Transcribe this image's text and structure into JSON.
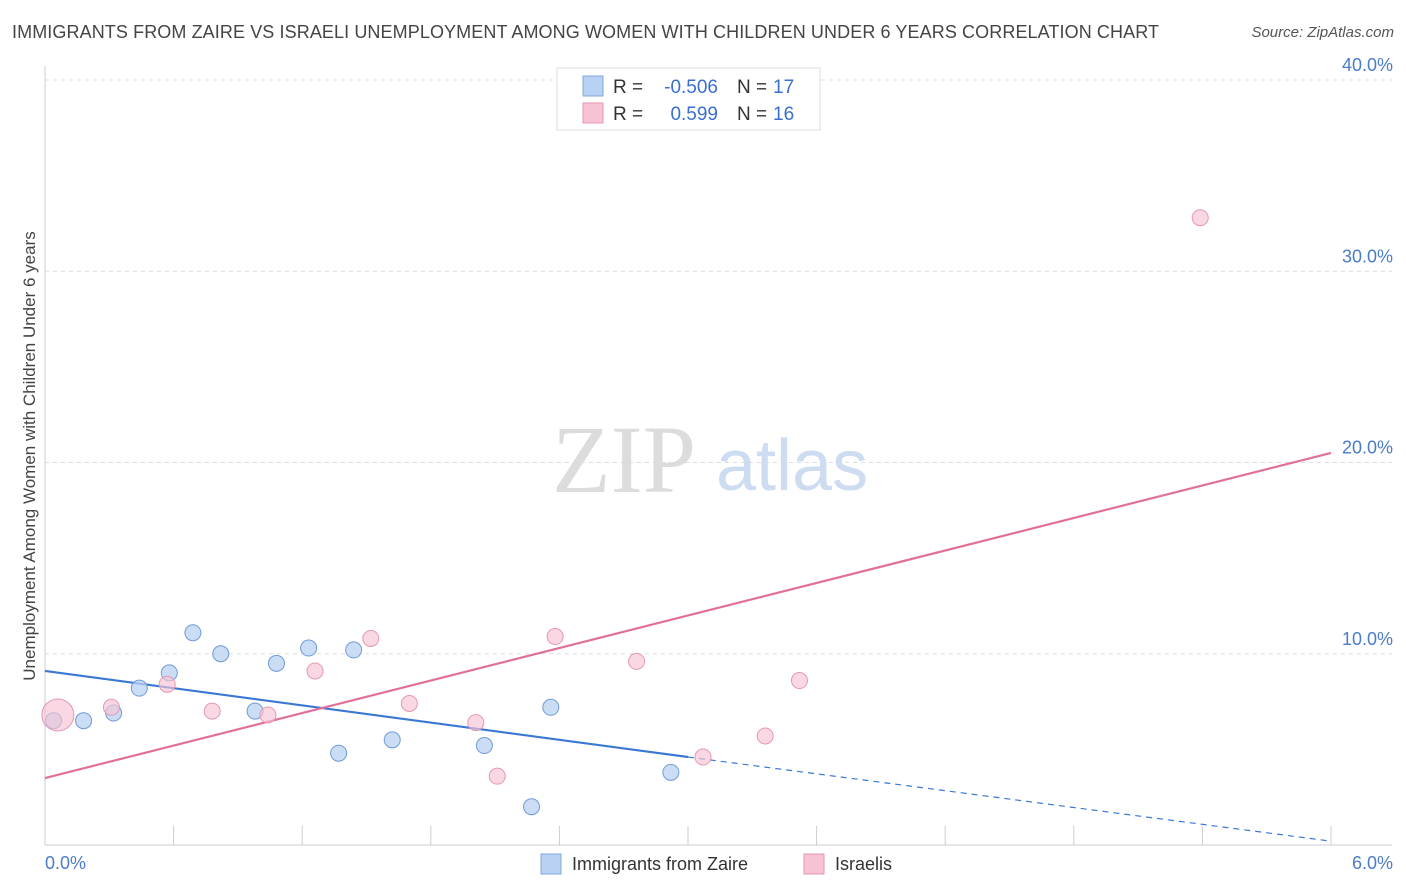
{
  "title": "IMMIGRANTS FROM ZAIRE VS ISRAELI UNEMPLOYMENT AMONG WOMEN WITH CHILDREN UNDER 6 YEARS CORRELATION CHART",
  "source": "Source: ZipAtlas.com",
  "watermark": {
    "zip": "ZIP",
    "atlas": "atlas"
  },
  "legend": {
    "r_label": "R =",
    "n_label": "N =",
    "rows": [
      {
        "r": "-0.506",
        "n": "17"
      },
      {
        "r": "0.599",
        "n": "16"
      }
    ]
  },
  "chart_data": {
    "type": "scatter",
    "xlabel": "",
    "ylabel": "Unemployment Among Women with Children Under 6 years",
    "xlim": [
      0,
      6
    ],
    "ylim": [
      0,
      40
    ],
    "x_tick_labels": [
      "0.0%",
      "6.0%"
    ],
    "y_ticks": [
      10,
      20,
      30,
      40
    ],
    "y_tick_labels": [
      "10.0%",
      "20.0%",
      "30.0%",
      "40.0%"
    ],
    "grid": true,
    "colors": {
      "blue": "#3a78d4",
      "blue_fill": "#b9d1f2",
      "pink": "#e0709a",
      "pink_fill": "#f7c3d4"
    },
    "series": [
      {
        "name": "Immigrants from Zaire",
        "color": "blue",
        "points": [
          {
            "x": 0.04,
            "y": 6.5
          },
          {
            "x": 0.18,
            "y": 6.5
          },
          {
            "x": 0.32,
            "y": 6.9
          },
          {
            "x": 0.44,
            "y": 8.2
          },
          {
            "x": 0.58,
            "y": 9.0
          },
          {
            "x": 0.69,
            "y": 11.1
          },
          {
            "x": 0.82,
            "y": 10.0
          },
          {
            "x": 0.98,
            "y": 7.0
          },
          {
            "x": 1.08,
            "y": 9.5
          },
          {
            "x": 1.23,
            "y": 10.3
          },
          {
            "x": 1.37,
            "y": 4.8
          },
          {
            "x": 1.44,
            "y": 10.2
          },
          {
            "x": 1.62,
            "y": 5.5
          },
          {
            "x": 2.05,
            "y": 5.2
          },
          {
            "x": 2.27,
            "y": 2.0
          },
          {
            "x": 2.36,
            "y": 7.2
          },
          {
            "x": 2.92,
            "y": 3.8
          }
        ],
        "trend": {
          "x0": 0.0,
          "y0": 9.1,
          "x1": 3.0,
          "y1": 4.6,
          "dash_to_x": 6.0,
          "dash_to_y": 0.2
        }
      },
      {
        "name": "Israelis",
        "color": "pink",
        "points": [
          {
            "x": 0.06,
            "y": 6.8,
            "big": true
          },
          {
            "x": 0.31,
            "y": 7.2
          },
          {
            "x": 0.57,
            "y": 8.4
          },
          {
            "x": 0.78,
            "y": 7.0
          },
          {
            "x": 1.04,
            "y": 6.8
          },
          {
            "x": 1.26,
            "y": 9.1
          },
          {
            "x": 1.52,
            "y": 10.8
          },
          {
            "x": 1.7,
            "y": 7.4
          },
          {
            "x": 2.01,
            "y": 6.4
          },
          {
            "x": 2.11,
            "y": 3.6
          },
          {
            "x": 2.38,
            "y": 10.9
          },
          {
            "x": 2.76,
            "y": 9.6
          },
          {
            "x": 3.07,
            "y": 4.6
          },
          {
            "x": 3.36,
            "y": 5.7
          },
          {
            "x": 3.52,
            "y": 8.6
          },
          {
            "x": 5.39,
            "y": 32.8
          }
        ],
        "trend": {
          "x0": 0.0,
          "y0": 3.5,
          "x1": 6.0,
          "y1": 20.5
        }
      }
    ]
  }
}
